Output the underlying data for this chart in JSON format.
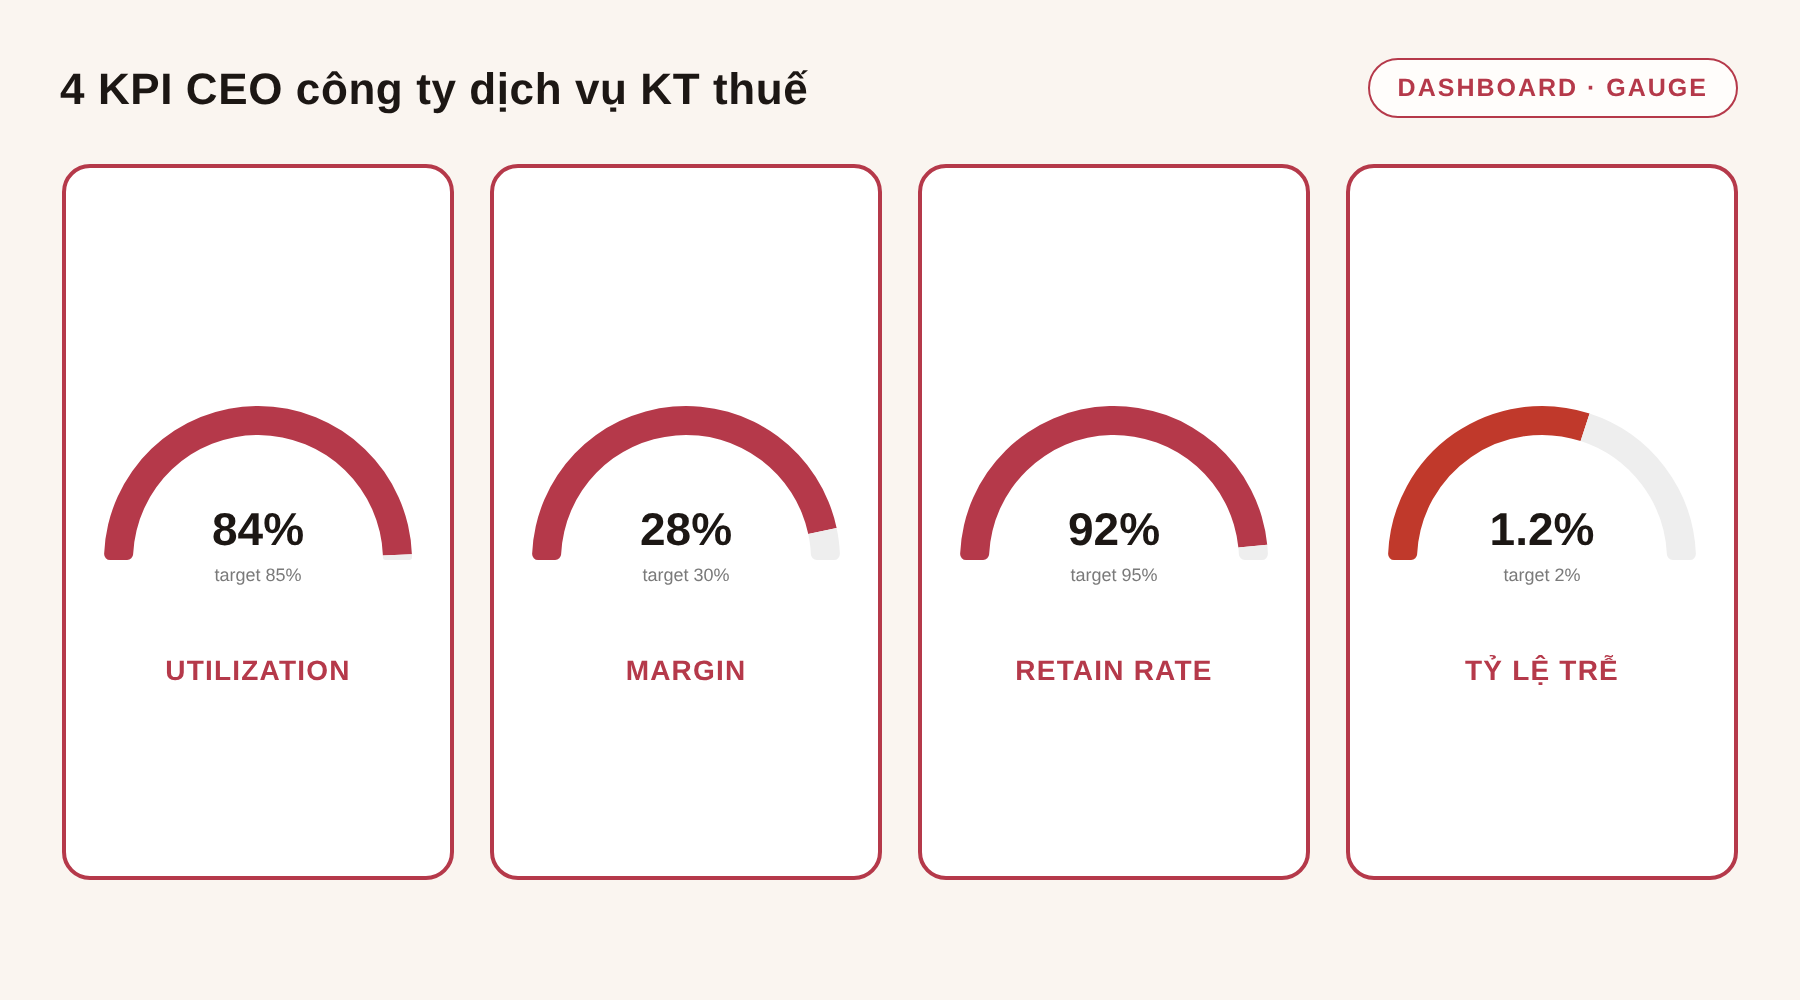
{
  "chart_data": [
    {
      "type": "other",
      "title": "4 KPI CEO công ty dịch vụ KT thuế",
      "annotations": [
        "DASHBOARD · GAUGE"
      ]
    },
    {
      "type": "donut",
      "title": "UTILIZATION",
      "categories": [
        null,
        null
      ],
      "values": [
        84,
        1
      ],
      "colors": [
        "#b5394a",
        "#eeeeee"
      ],
      "value_labels": [
        "84%",
        null
      ],
      "annotations": [
        "target 85%"
      ]
    },
    {
      "type": "donut",
      "title": "MARGIN",
      "categories": [
        null,
        null
      ],
      "values": [
        28,
        2
      ],
      "colors": [
        "#b5394a",
        "#eeeeee"
      ],
      "value_labels": [
        "28%",
        null
      ],
      "annotations": [
        "target 30%"
      ]
    },
    {
      "type": "donut",
      "title": "RETAIN RATE",
      "categories": [
        null,
        null
      ],
      "values": [
        92,
        3
      ],
      "colors": [
        "#b5394a",
        "#eeeeee"
      ],
      "value_labels": [
        "92%",
        null
      ],
      "annotations": [
        "target 95%"
      ]
    },
    {
      "type": "donut",
      "title": "TỶ LỆ TRỄ",
      "categories": [
        null,
        null
      ],
      "values": [
        1.2,
        0.8
      ],
      "colors": [
        "#c0392b",
        "#eeeeee"
      ],
      "value_labels": [
        "1.2%",
        null
      ],
      "annotations": [
        "target 2%"
      ]
    }
  ]
}
